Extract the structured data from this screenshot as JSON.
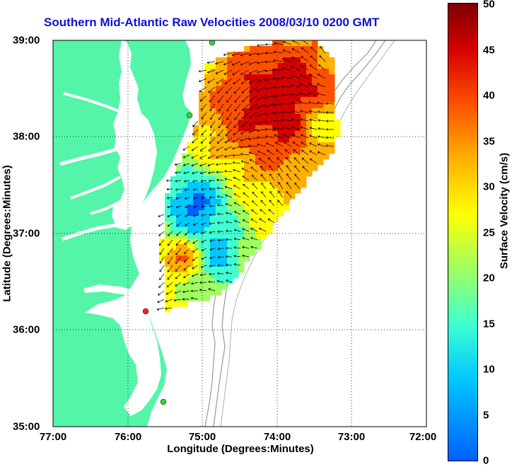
{
  "title": "Southern Mid-Atlantic Raw Velocities 2008/03/10 0200 GMT",
  "axes": {
    "xlabel": "Longitude (Degrees:Minutes)",
    "ylabel": "Latitude (Degrees:Minutes)",
    "x_ticks": [
      "77:00",
      "76:00",
      "75:00",
      "74:00",
      "73:00",
      "72:00"
    ],
    "y_ticks": [
      "39:00",
      "38:00",
      "37:00",
      "36:00",
      "35:00"
    ],
    "x_range_deg_west": [
      77,
      72
    ],
    "y_range_deg_north": [
      35,
      39
    ],
    "grid": "dotted"
  },
  "colorbar": {
    "label": "Surface Velocity (cm/s)",
    "ticks": [
      "50",
      "45",
      "40",
      "35",
      "30",
      "25",
      "20",
      "15",
      "10",
      "5",
      "0"
    ],
    "range": [
      0,
      50
    ],
    "colors": [
      "#0060ff",
      "#00c8ff",
      "#40ffd0",
      "#a0ff60",
      "#ffff00",
      "#ffb000",
      "#ff5000",
      "#d40000",
      "#800000"
    ]
  },
  "colors": {
    "land": "#54f5a8",
    "water": "#ffffff",
    "bathymetry": "#9a9a9a",
    "title": "#1010d8",
    "station_green": "#38d038",
    "station_red": "#ff2020"
  },
  "stations": [
    {
      "color": "green",
      "lon": 74.85,
      "lat": 38.98
    },
    {
      "color": "green",
      "lon": 75.15,
      "lat": 38.22
    },
    {
      "color": "red",
      "lon": 75.75,
      "lat": 36.18
    },
    {
      "color": "green",
      "lon": 75.53,
      "lat": 35.08
    }
  ]
}
